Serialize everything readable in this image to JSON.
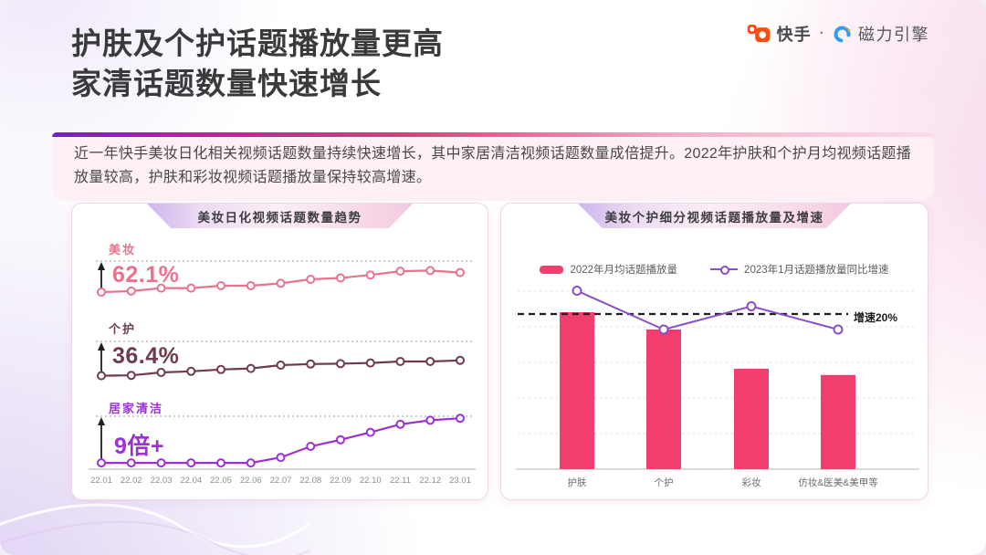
{
  "header": {
    "title_line1": "护肤及个护话题播放量更高",
    "title_line2": "家清话题数量快速增长",
    "brand": {
      "kuaishou_label": "快手",
      "separator": "·",
      "engine_label": "磁力引擎",
      "icons": {
        "kuaishou_icon": "kuaishou-camera",
        "engine_icon": "magnetic-engine-swirl"
      },
      "kuaishou_color": "#fe4b0e",
      "engine_icon_color": "#2b9df4"
    }
  },
  "summary": {
    "text": "近一年快手美妆日化相关视频话题数量持续快速增长，其中家居清洁视频话题数量成倍提升。2022年护肤和个护月均视频话题播放量较高，护肤和彩妆视频话题播放量保持较高增速。"
  },
  "chart_data": [
    {
      "id": "topic-count-trend",
      "type": "line",
      "title": "美妆日化视频话题数量趋势",
      "x": [
        "22.01",
        "22.02",
        "22.03",
        "22.04",
        "22.05",
        "22.06",
        "22.07",
        "22.08",
        "22.09",
        "22.10",
        "22.11",
        "22.12",
        "23.01"
      ],
      "grid": "off",
      "series": [
        {
          "name": "美妆",
          "growth_label": "62.1%",
          "color": "#e9738f",
          "values_relative": [
            8,
            11,
            20,
            20,
            27,
            27,
            34,
            46,
            50,
            59,
            70,
            72,
            66
          ]
        },
        {
          "name": "个护",
          "growth_label": "36.4%",
          "color": "#6f3c49",
          "values_relative": [
            6,
            7,
            15,
            18,
            23,
            26,
            35,
            38,
            39,
            41,
            45,
            45,
            48
          ]
        },
        {
          "name": "居家清洁",
          "growth_label": "9倍+",
          "color": "#9d2fd6",
          "values_relative": [
            7,
            7,
            7,
            7,
            7,
            7,
            18,
            40,
            53,
            68,
            84,
            92,
            96
          ]
        }
      ],
      "ylim": [
        0,
        100
      ]
    },
    {
      "id": "playcount-and-growth",
      "type": "bar+line",
      "title": "美妆个护细分视频话题播放量及增速",
      "categories": [
        "护肤",
        "个护",
        "彩妆",
        "仿妆&医美&美甲等"
      ],
      "legend": [
        "2022年月均话题播放量",
        "2023年1月话题播放量同比增速"
      ],
      "legend_position": "top",
      "bar_color": "#f23e6e",
      "line_color": "#8a4fc8",
      "bars_relative": [
        100,
        89,
        64,
        60
      ],
      "growth_pct_est": [
        23,
        18,
        21,
        18
      ],
      "reference_line": {
        "label": "增速20%",
        "value_pct": 20,
        "color": "#1f1f21"
      },
      "grid": "dotted-horizontal"
    }
  ]
}
